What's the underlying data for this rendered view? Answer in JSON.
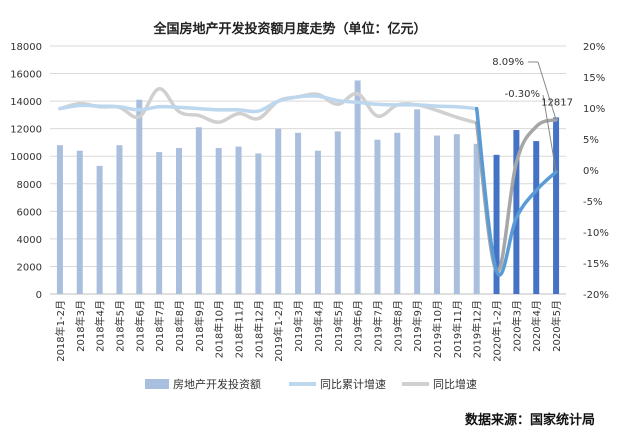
{
  "chart_data": {
    "type": "bar",
    "title": "全国房地产开发投资额月度走势（单位：亿元）",
    "categories": [
      "2018年1-2月",
      "2018年3月",
      "2018年4月",
      "2018年5月",
      "2018年6月",
      "2018年7月",
      "2018年8月",
      "2018年9月",
      "2018年10月",
      "2018年11月",
      "2018年12月",
      "2019年1-2月",
      "2019年3月",
      "2019年4月",
      "2019年5月",
      "2019年6月",
      "2019年7月",
      "2019年8月",
      "2019年9月",
      "2019年10月",
      "2019年11月",
      "2019年12月",
      "2020年1-2月",
      "2020年3月",
      "2020年4月",
      "2020年5月"
    ],
    "ylim_left": [
      0,
      18000
    ],
    "yticks_left": [
      "0",
      "2000",
      "4000",
      "6000",
      "8000",
      "10000",
      "12000",
      "14000",
      "16000",
      "18000"
    ],
    "ylim_right": [
      -0.2,
      0.2
    ],
    "yticks_right": [
      "-20%",
      "-15%",
      "-10%",
      "-5%",
      "0%",
      "5%",
      "10%",
      "15%",
      "20%"
    ],
    "series": [
      {
        "name": "房地产开发投资额",
        "kind": "bar",
        "values": [
          10800,
          10400,
          9300,
          10800,
          14100,
          10300,
          10600,
          12100,
          10600,
          10700,
          10200,
          12000,
          11700,
          10400,
          11800,
          15500,
          11200,
          11700,
          13400,
          11500,
          11600,
          10900,
          10100,
          11900,
          11100,
          12817
        ]
      },
      {
        "name": "同比累计增速",
        "kind": "line",
        "values": [
          0.099,
          0.104,
          0.103,
          0.102,
          0.097,
          0.102,
          0.101,
          0.099,
          0.097,
          0.097,
          0.095,
          0.111,
          0.118,
          0.119,
          0.112,
          0.109,
          0.106,
          0.105,
          0.105,
          0.103,
          0.102,
          0.099,
          -0.163,
          -0.077,
          -0.033,
          -0.003
        ]
      },
      {
        "name": "同比增速",
        "kind": "line",
        "values": [
          0.099,
          0.107,
          0.102,
          0.101,
          0.086,
          0.131,
          0.094,
          0.088,
          0.077,
          0.091,
          0.083,
          0.111,
          0.118,
          0.122,
          0.106,
          0.123,
          0.087,
          0.105,
          0.105,
          0.096,
          0.085,
          0.076,
          -0.163,
          0.012,
          0.07,
          0.081
        ]
      }
    ],
    "annotations": [
      "8.09%",
      "-0.30%",
      "12817"
    ],
    "colors": {
      "bar_2018_2019": "#a9bfdd",
      "bar_2020": "#4472c4",
      "cum_line": "#bdd7ee",
      "cum_line_2020": "#5b9bd5",
      "yoy_line": "#d0d0d0",
      "yoy_line_2020": "#a6a6a6",
      "grid": "#d9d9d9"
    },
    "legend_position": "bottom",
    "grid": true
  },
  "source": "数据来源：国家统计局"
}
